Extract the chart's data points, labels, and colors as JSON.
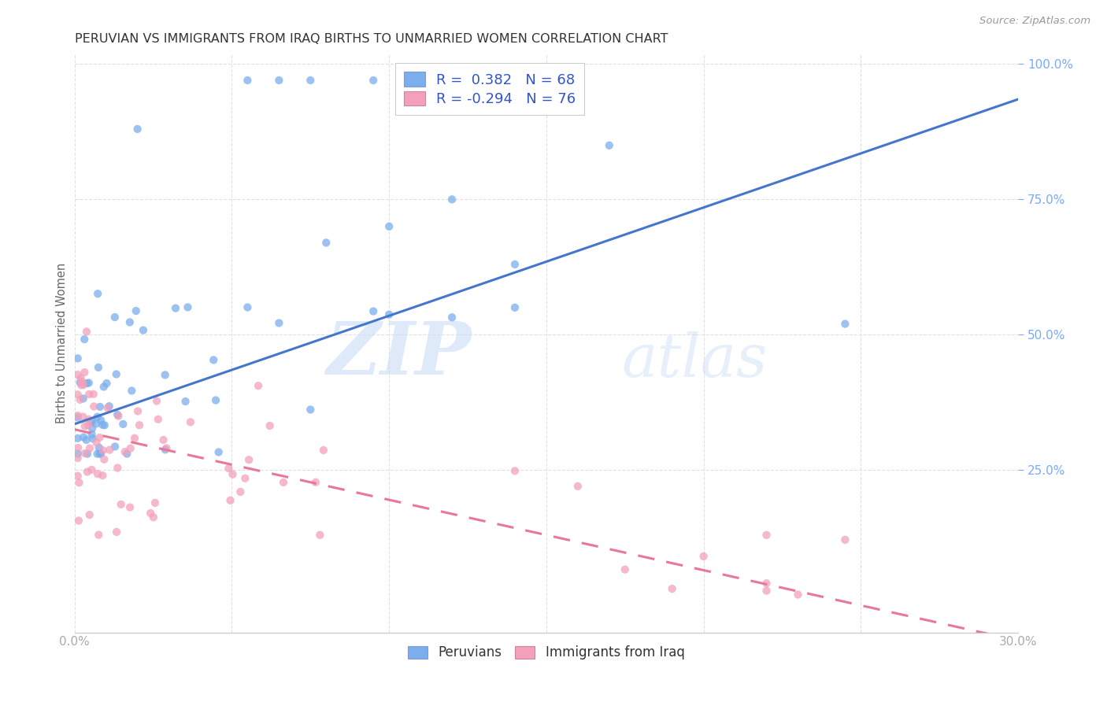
{
  "title": "PERUVIAN VS IMMIGRANTS FROM IRAQ BIRTHS TO UNMARRIED WOMEN CORRELATION CHART",
  "source": "Source: ZipAtlas.com",
  "ylabel": "Births to Unmarried Women",
  "x_min": 0.0,
  "x_max": 0.3,
  "y_min": -0.05,
  "y_max": 1.02,
  "y_ticks": [
    0.25,
    0.5,
    0.75,
    1.0
  ],
  "y_tick_labels_right": [
    "25.0%",
    "50.0%",
    "75.0%",
    "100.0%"
  ],
  "peruvian_color": "#7aaeed",
  "iraq_color": "#f4a0bb",
  "peruvian_line_color": "#4477cc",
  "iraq_line_color": "#e87799",
  "R_peruvian": 0.382,
  "N_peruvian": 68,
  "R_iraq": -0.294,
  "N_iraq": 76,
  "legend_label_peruvian": "Peruvians",
  "legend_label_iraq": "Immigrants from Iraq",
  "watermark_zip": "ZIP",
  "watermark_atlas": "atlas",
  "peru_line_x0": 0.0,
  "peru_line_y0": 0.335,
  "peru_line_x1": 0.3,
  "peru_line_y1": 0.935,
  "iraq_line_x0": 0.0,
  "iraq_line_y0": 0.325,
  "iraq_line_x1": 0.3,
  "iraq_line_y1": -0.065,
  "grid_color": "#e0e0e0",
  "title_color": "#333333",
  "source_color": "#999999",
  "tick_color": "#aaaaaa",
  "right_tick_color": "#77aaff"
}
